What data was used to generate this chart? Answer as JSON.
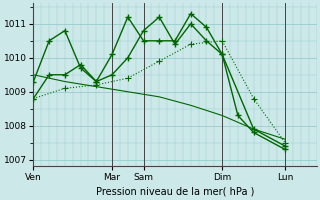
{
  "background_color": "#cce8e8",
  "grid_color": "#99cccc",
  "line_color": "#006600",
  "title": "Pression niveau de la mer( hPa )",
  "ylim": [
    1006.8,
    1011.6
  ],
  "yticks": [
    1007,
    1008,
    1009,
    1010,
    1011
  ],
  "day_labels": [
    "Ven",
    "Mar",
    "Sam",
    "Dim",
    "Lun"
  ],
  "day_positions": [
    0,
    60,
    84,
    144,
    192
  ],
  "xlim": [
    0,
    216
  ],
  "series": [
    {
      "x": [
        0,
        12,
        24,
        36,
        48,
        60,
        72,
        84,
        96,
        108,
        120,
        132,
        144,
        168,
        192
      ],
      "y": [
        1009.3,
        1010.5,
        1010.8,
        1009.7,
        1009.3,
        1010.1,
        1011.2,
        1010.5,
        1010.5,
        1010.5,
        1011.3,
        1010.9,
        1010.1,
        1007.9,
        1007.4
      ],
      "style": "-",
      "marker": "+"
    },
    {
      "x": [
        0,
        12,
        24,
        36,
        48,
        60,
        72,
        84,
        96,
        108,
        120,
        132,
        144,
        156,
        168,
        192
      ],
      "y": [
        1008.8,
        1009.5,
        1009.5,
        1009.8,
        1009.3,
        1009.5,
        1010.0,
        1010.8,
        1011.2,
        1010.4,
        1011.0,
        1010.5,
        1010.1,
        1008.3,
        1007.8,
        1007.3
      ],
      "style": "-",
      "marker": "+"
    },
    {
      "x": [
        0,
        24,
        48,
        72,
        96,
        120,
        144,
        168,
        192
      ],
      "y": [
        1008.8,
        1009.1,
        1009.2,
        1009.4,
        1009.9,
        1010.4,
        1010.5,
        1008.8,
        1007.5
      ],
      "style": ":",
      "marker": "+"
    },
    {
      "x": [
        0,
        24,
        48,
        72,
        96,
        120,
        144,
        168,
        192
      ],
      "y": [
        1009.5,
        1009.3,
        1009.15,
        1009.0,
        1008.85,
        1008.6,
        1008.3,
        1007.9,
        1007.6
      ],
      "style": "-",
      "marker": null
    }
  ],
  "vline_positions": [
    60,
    84,
    144,
    192
  ],
  "vline_color": "#444444"
}
